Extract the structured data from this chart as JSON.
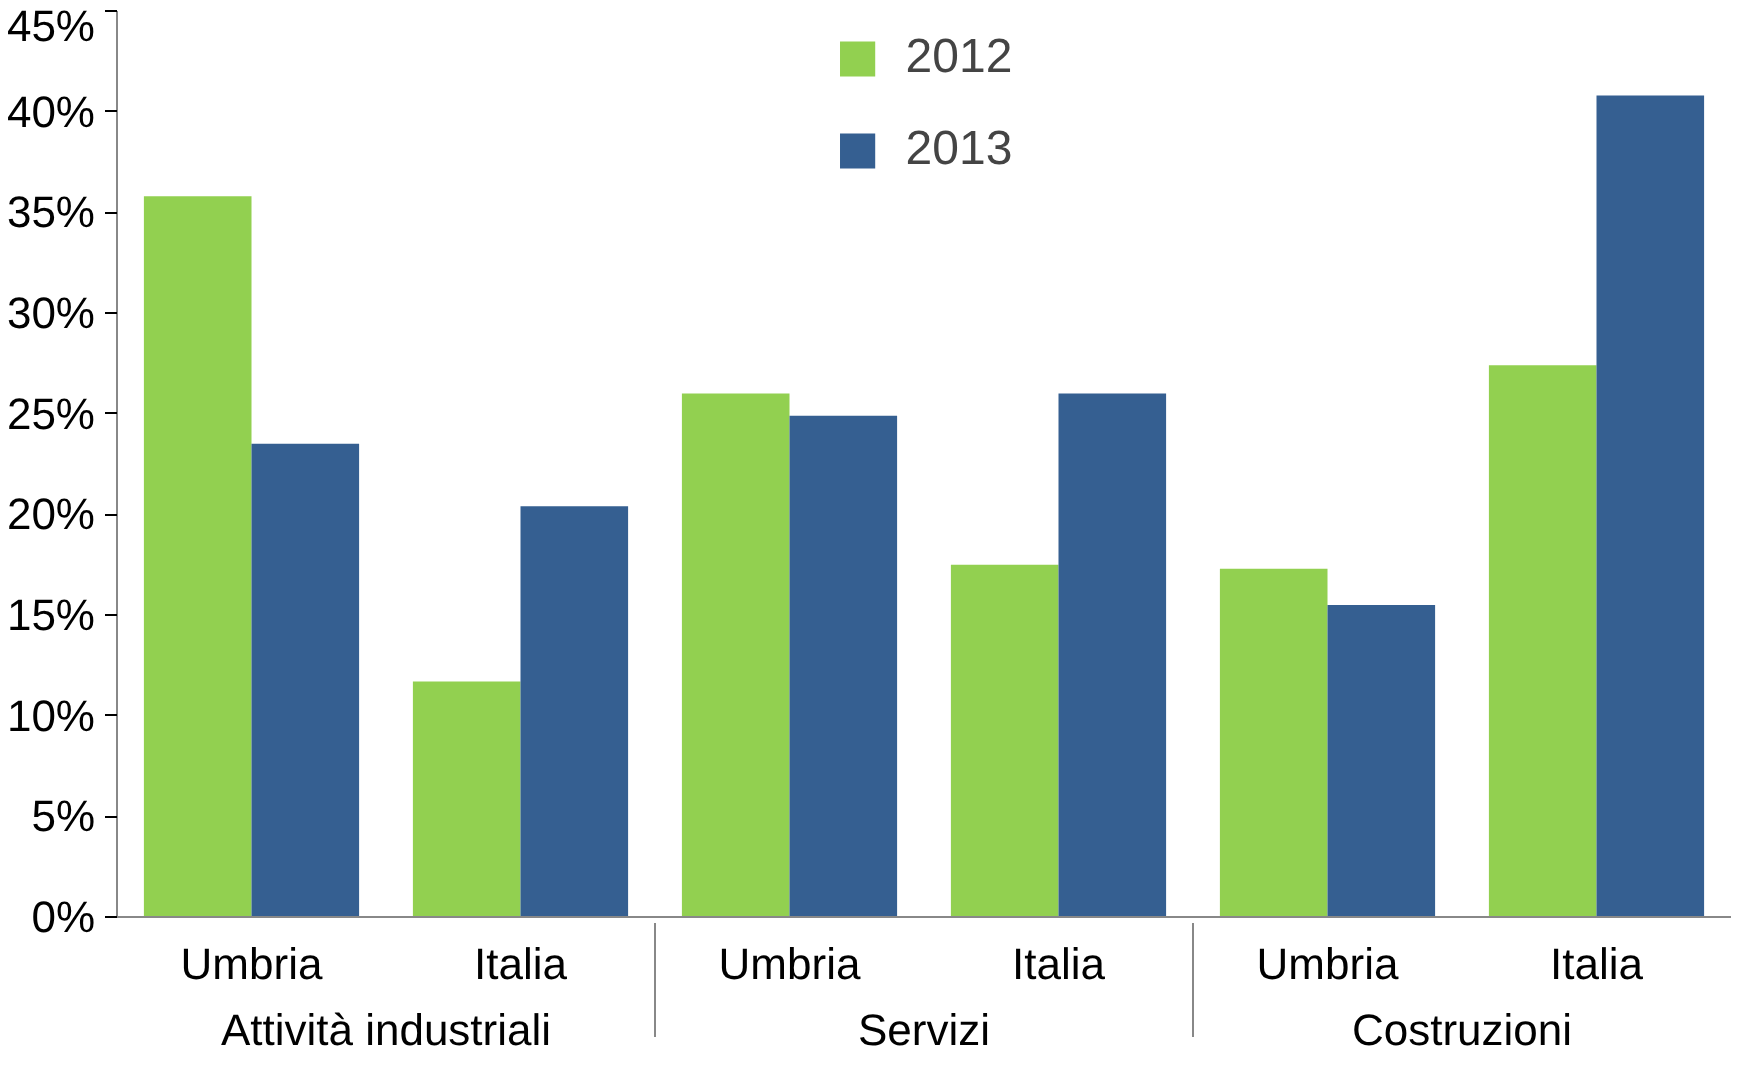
{
  "chart_data": {
    "type": "bar",
    "categories": [
      "Umbria",
      "Italia",
      "Umbria",
      "Italia",
      "Umbria",
      "Italia"
    ],
    "annotations": [
      "Attività industriali",
      "Servizi",
      "Costruzioni"
    ],
    "series": [
      {
        "name": "2012",
        "color": "#92d050",
        "values": [
          35.8,
          11.7,
          26.0,
          17.5,
          17.3,
          27.4
        ]
      },
      {
        "name": "2013",
        "color": "#355f91",
        "values": [
          23.5,
          20.4,
          24.9,
          26.0,
          15.5,
          40.8
        ]
      }
    ],
    "ylim": [
      0,
      45
    ],
    "yticks": [
      {
        "value": 0,
        "label": "0%"
      },
      {
        "value": 5,
        "label": "5%"
      },
      {
        "value": 10,
        "label": "10%"
      },
      {
        "value": 15,
        "label": "15%"
      },
      {
        "value": 20,
        "label": "20%"
      },
      {
        "value": 25,
        "label": "25%"
      },
      {
        "value": 30,
        "label": "30%"
      },
      {
        "value": 35,
        "label": "35%"
      },
      {
        "value": 40,
        "label": "40%"
      },
      {
        "value": 45,
        "label": "45%"
      }
    ],
    "grid": false,
    "legend": "top"
  }
}
